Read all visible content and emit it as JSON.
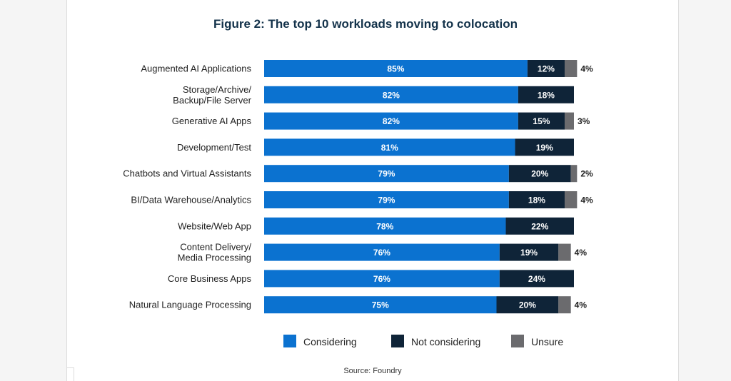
{
  "chart_data": {
    "type": "bar",
    "orientation": "horizontal",
    "stacked": true,
    "title": "Figure 2: The top 10 workloads moving to colocation",
    "categories": [
      [
        "Augmented AI Applications"
      ],
      [
        "Storage/Archive/",
        "Backup/File Server"
      ],
      [
        "Generative AI Apps"
      ],
      [
        "Development/Test"
      ],
      [
        "Chatbots and Virtual Assistants"
      ],
      [
        "BI/Data Warehouse/Analytics"
      ],
      [
        "Website/Web App"
      ],
      [
        "Content Delivery/",
        "Media Processing"
      ],
      [
        "Core Business Apps"
      ],
      [
        "Natural Language Processing"
      ]
    ],
    "series": [
      {
        "name": "Considering",
        "color": "#0b72d0",
        "values": [
          85,
          82,
          82,
          81,
          79,
          79,
          78,
          76,
          76,
          75
        ]
      },
      {
        "name": "Not considering",
        "color": "#0f2438",
        "values": [
          12,
          18,
          15,
          19,
          20,
          18,
          22,
          19,
          24,
          20
        ]
      },
      {
        "name": "Unsure",
        "color": "#6b6b6e",
        "values": [
          4,
          0,
          3,
          0,
          2,
          4,
          0,
          4,
          0,
          4
        ]
      }
    ],
    "value_suffix": "%",
    "grid": false,
    "legend_position": "bottom",
    "source": "Source: Foundry"
  }
}
